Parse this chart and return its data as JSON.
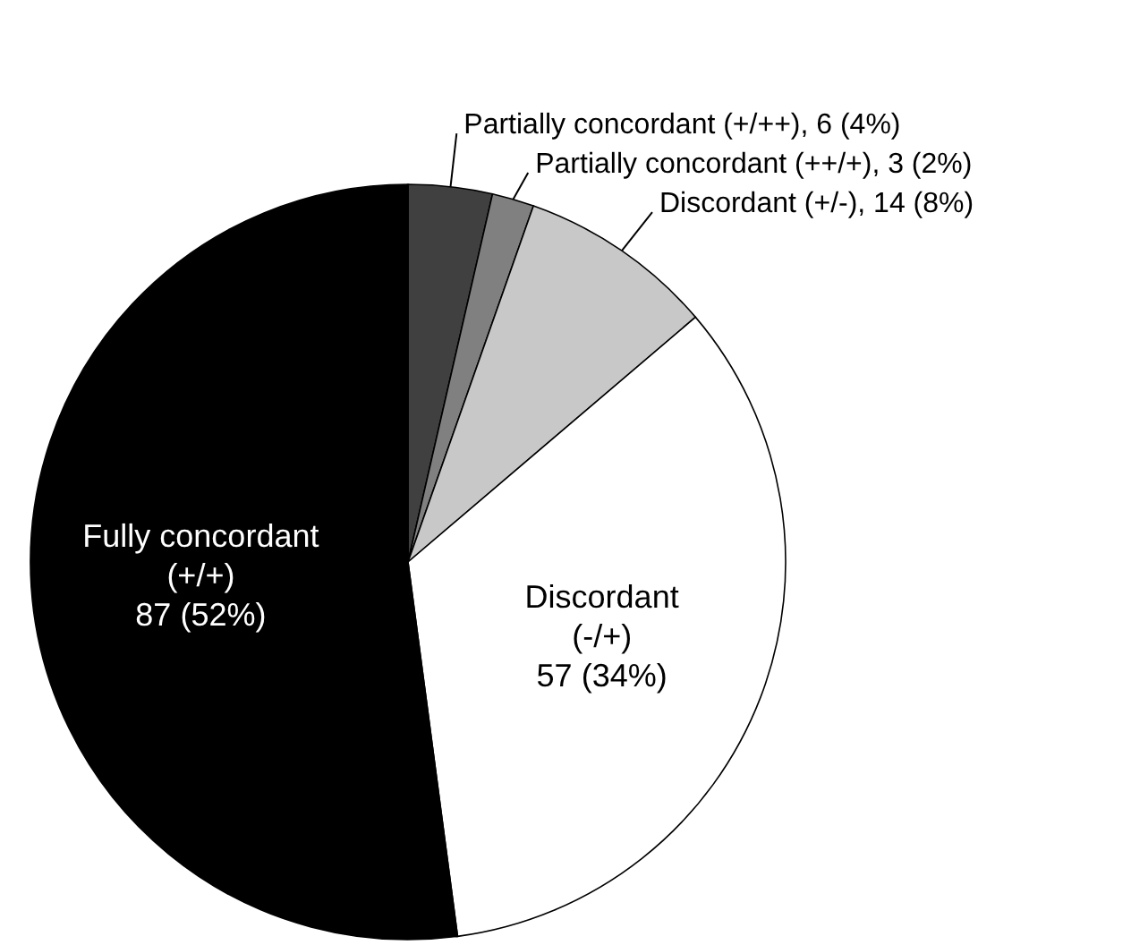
{
  "chart_data": {
    "type": "pie",
    "categories": [
      "Partially concordant (+/++)",
      "Partially concordant (++/+)",
      "Discordant (+/-)",
      "Discordant (-/+)",
      "Fully concordant (+/+)"
    ],
    "values": [
      6,
      3,
      14,
      57,
      87
    ],
    "value_labels": [
      "6 (4%)",
      "3 (2%)",
      "14 (8%)",
      "57 (34%)",
      "87 (52%)"
    ],
    "colors": [
      "#404040",
      "#808080",
      "#c8c8c8",
      "#ffffff",
      "#000000"
    ]
  }
}
